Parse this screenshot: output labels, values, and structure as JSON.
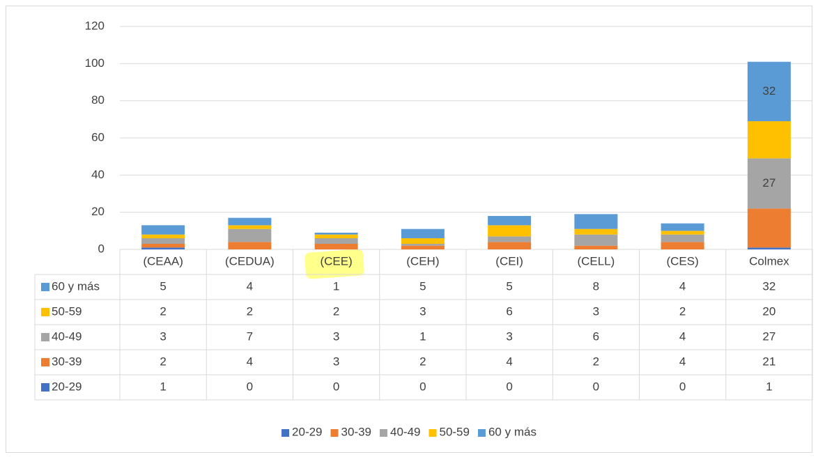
{
  "chart_data": {
    "type": "bar",
    "stacked": true,
    "data_table": true,
    "categories": [
      "(CEAA)",
      "(CEDUA)",
      "(CEE)",
      "(CEH)",
      "(CEI)",
      "(CELL)",
      "(CES)",
      "Colmex"
    ],
    "series": [
      {
        "name": "20-29",
        "color": "#4472c4",
        "values": [
          1,
          0,
          0,
          0,
          0,
          0,
          0,
          1
        ]
      },
      {
        "name": "30-39",
        "color": "#ed7d31",
        "values": [
          2,
          4,
          3,
          2,
          4,
          2,
          4,
          21
        ]
      },
      {
        "name": "40-49",
        "color": "#a5a5a5",
        "values": [
          3,
          7,
          3,
          1,
          3,
          6,
          4,
          27
        ]
      },
      {
        "name": "50-59",
        "color": "#ffc000",
        "values": [
          2,
          2,
          2,
          3,
          6,
          3,
          2,
          20
        ]
      },
      {
        "name": "60 y más",
        "color": "#5b9bd5",
        "values": [
          5,
          4,
          1,
          5,
          5,
          8,
          4,
          32
        ]
      }
    ],
    "ylim": [
      0,
      120
    ],
    "yticks": [
      0,
      20,
      40,
      60,
      80,
      100,
      120
    ],
    "grid": true,
    "legend": "bottom"
  }
}
